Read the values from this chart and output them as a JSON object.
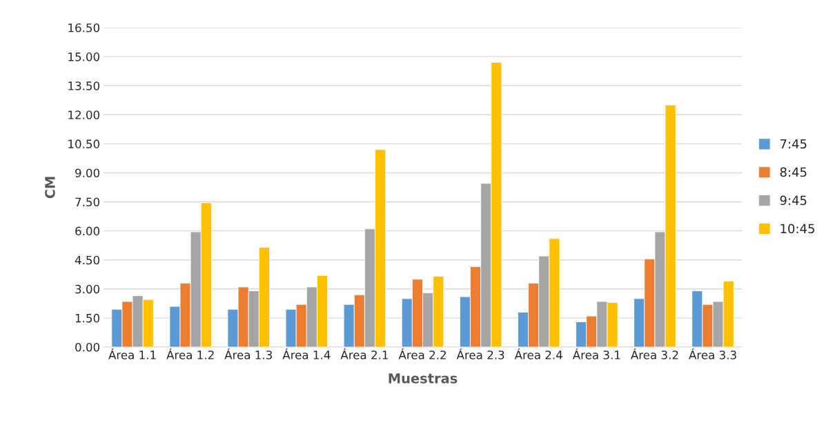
{
  "chart_data": {
    "type": "bar",
    "xlabel": "Muestras",
    "ylabel": "CM",
    "categories": [
      "Área 1.1",
      "Área 1.2",
      "Área 1.3",
      "Área 1.4",
      "Área 2.1",
      "Área 2.2",
      "Área 2.3",
      "Área 2.4",
      "Área 3.1",
      "Área 3.2",
      "Área 3.3"
    ],
    "series": [
      {
        "name": "7:45",
        "color": "#5b9bd5",
        "values": [
          1.95,
          2.1,
          1.95,
          1.95,
          2.2,
          2.5,
          2.6,
          1.8,
          1.3,
          2.5,
          2.9
        ]
      },
      {
        "name": "8:45",
        "color": "#ed7d31",
        "values": [
          2.35,
          3.3,
          3.1,
          2.2,
          2.7,
          3.5,
          4.15,
          3.3,
          1.6,
          4.55,
          2.2
        ]
      },
      {
        "name": "9:45",
        "color": "#a5a5a5",
        "values": [
          2.65,
          5.95,
          2.9,
          3.1,
          6.1,
          2.8,
          8.45,
          4.7,
          2.35,
          5.95,
          2.35
        ]
      },
      {
        "name": "10:45",
        "color": "#ffc000",
        "values": [
          2.45,
          7.45,
          5.15,
          3.7,
          10.2,
          3.65,
          14.7,
          5.6,
          2.3,
          12.5,
          3.4
        ]
      }
    ],
    "ylim": [
      0,
      16.5
    ],
    "yticks": [
      {
        "value": 0,
        "label": "0.00"
      },
      {
        "value": 1.5,
        "label": "1.50"
      },
      {
        "value": 3,
        "label": "3.00"
      },
      {
        "value": 4.5,
        "label": "4.50"
      },
      {
        "value": 6,
        "label": "6.00"
      },
      {
        "value": 7.5,
        "label": "7.50"
      },
      {
        "value": 9,
        "label": "9.00"
      },
      {
        "value": 10.5,
        "label": "10.50"
      },
      {
        "value": 12,
        "label": "12.00"
      },
      {
        "value": 13.5,
        "label": "13.50"
      },
      {
        "value": 15,
        "label": "15.00"
      },
      {
        "value": 16.5,
        "label": "16.50"
      }
    ],
    "grid": "y",
    "legend": "right"
  }
}
